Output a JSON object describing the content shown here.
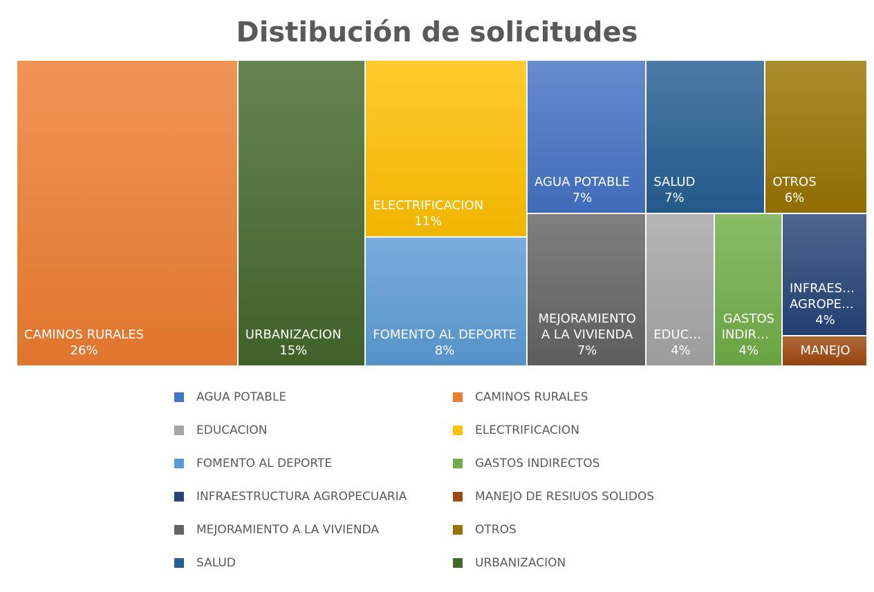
{
  "chart_data": {
    "type": "treemap",
    "title": "Distibución de solicitudes",
    "categories": [
      "AGUA POTABLE",
      "CAMINOS RURALES",
      "EDUCACION",
      "ELECTRIFICACION",
      "FOMENTO AL DEPORTE",
      "GASTOS INDIRECTOS",
      "INFRAESTRUCTURA AGROPECUARIA",
      "MANEJO DE RESIUOS SOLIDOS",
      "MEJORAMIENTO A LA VIVIENDA",
      "OTROS",
      "SALUD",
      "URBANIZACION"
    ],
    "values": [
      7,
      26,
      4,
      11,
      8,
      4,
      4,
      1,
      7,
      6,
      7,
      15
    ],
    "value_labels": [
      "7%",
      "26%",
      "4%",
      "11%",
      "8%",
      "4%",
      "4%",
      null,
      "7%",
      "6%",
      "7%",
      "15%"
    ],
    "colors": [
      "#4472c4",
      "#ed7d31",
      "#a5a5a5",
      "#ffc000",
      "#5b9bd5",
      "#70ad47",
      "#264478",
      "#9e480e",
      "#636363",
      "#997300",
      "#255e91",
      "#43682b"
    ],
    "legend": true
  }
}
